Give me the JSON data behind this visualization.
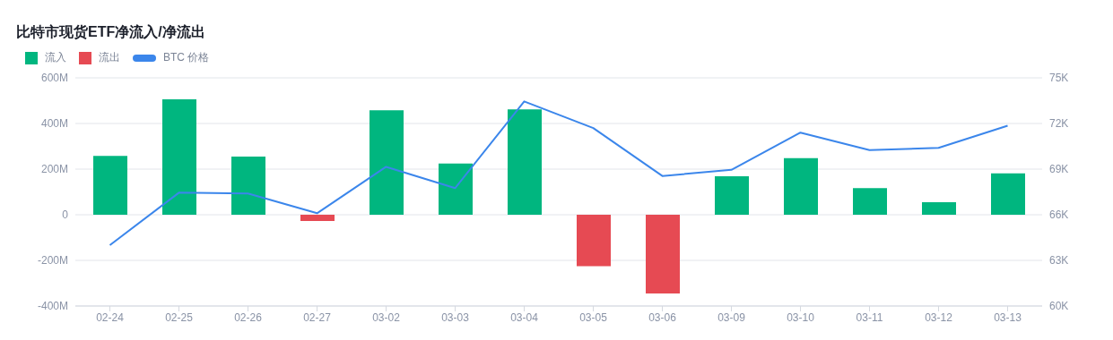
{
  "chart_data": {
    "type": "bar",
    "title": "比特市现货ETF净流入/净流出",
    "categories": [
      "02-24",
      "02-25",
      "02-26",
      "02-27",
      "03-02",
      "03-03",
      "03-04",
      "03-05",
      "03-06",
      "03-09",
      "03-10",
      "03-11",
      "03-12",
      "03-13"
    ],
    "stacked": true,
    "series": [
      {
        "name": "流入",
        "color": "#00b67f",
        "values": [
          258,
          506,
          255,
          null,
          458,
          225,
          462,
          null,
          null,
          169,
          248,
          117,
          55,
          181
        ]
      },
      {
        "name": "流出",
        "color": "#e64a53",
        "values": [
          null,
          null,
          null,
          -27,
          null,
          null,
          null,
          -225,
          -345,
          null,
          null,
          null,
          null,
          null
        ]
      },
      {
        "name": "BTC 价格",
        "type": "line",
        "axis": "y2",
        "color": "#3b86eb",
        "values": [
          64000,
          67450,
          67400,
          66100,
          69150,
          67750,
          73450,
          71700,
          68550,
          68950,
          71400,
          70250,
          70400,
          71850
        ]
      }
    ],
    "ylim": [
      -400,
      600
    ],
    "yticks": [
      {
        "value": -400,
        "label": "-400M"
      },
      {
        "value": -200,
        "label": "-200M"
      },
      0,
      {
        "value": 200,
        "label": "200M"
      },
      {
        "value": 400,
        "label": "400M"
      },
      {
        "value": 600,
        "label": "600M"
      }
    ],
    "y2lim": [
      60000,
      75000
    ],
    "y2ticks": [
      {
        "value": 60000,
        "label": "60K"
      },
      {
        "value": 63000,
        "label": "63K"
      },
      {
        "value": 66000,
        "label": "66K"
      },
      {
        "value": 69000,
        "label": "69K"
      },
      {
        "value": 72000,
        "label": "72K"
      },
      {
        "value": 75000,
        "label": "75K"
      }
    ],
    "grid": "y",
    "legend": "top left",
    "marker": "none",
    "line_style": "solid"
  }
}
